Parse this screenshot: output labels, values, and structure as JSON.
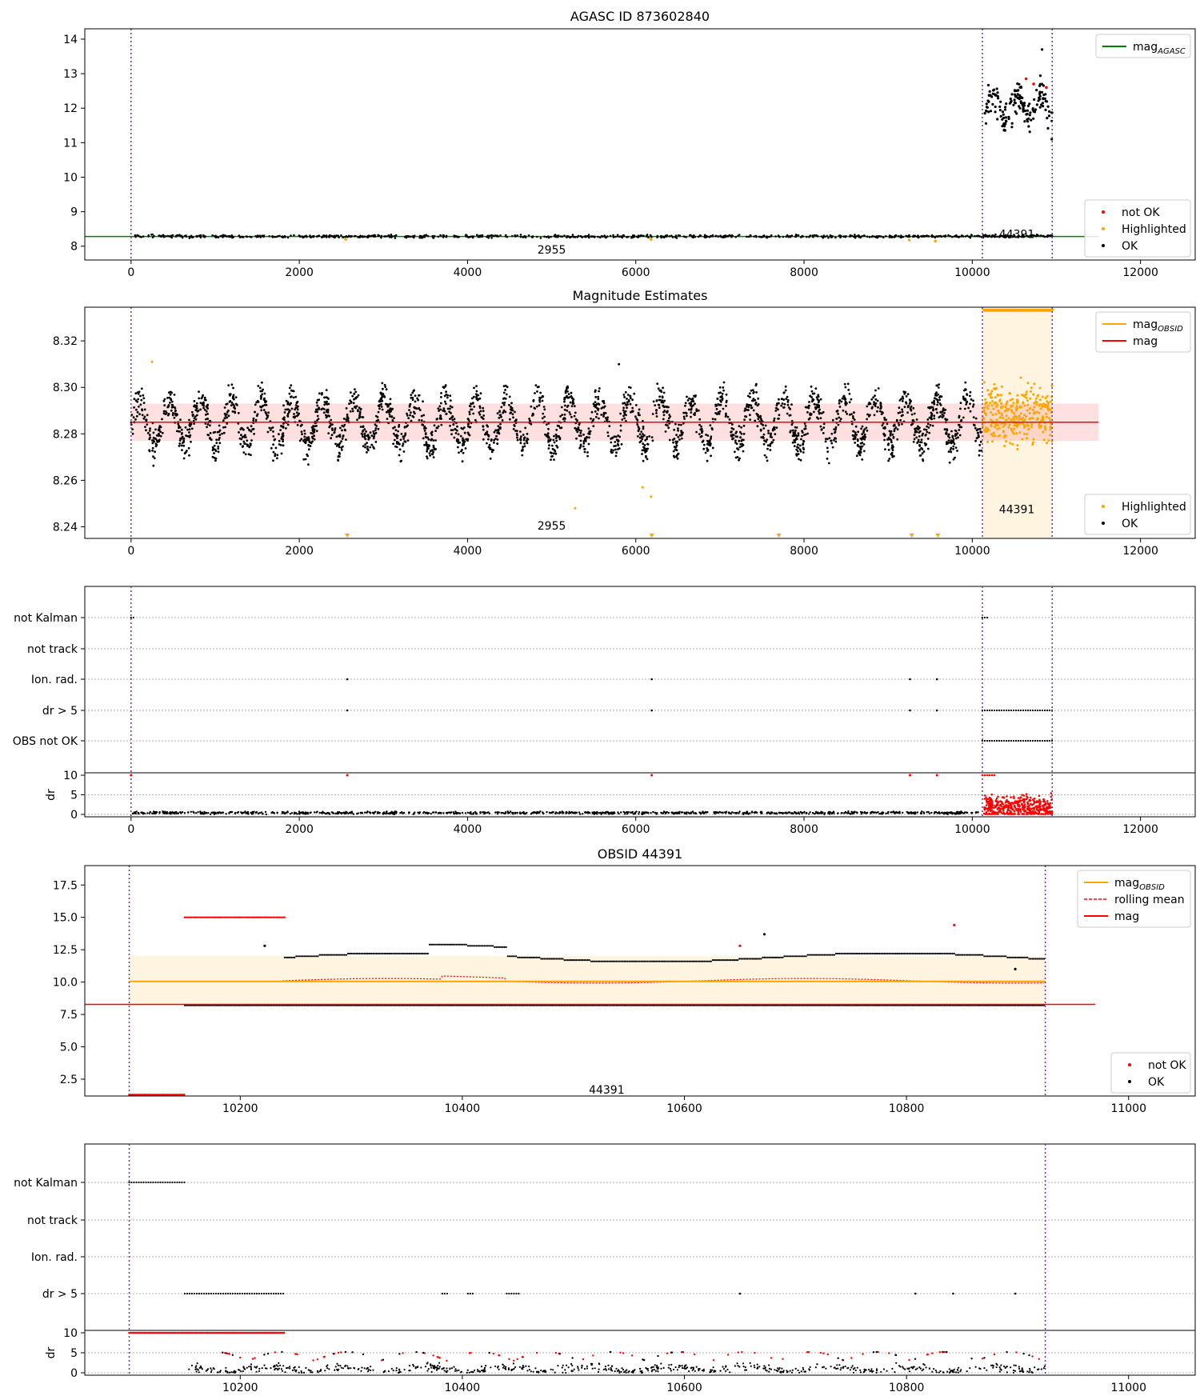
{
  "chart_data": [
    {
      "type": "scatter",
      "title": "AGASC ID 873602840",
      "xlim": [
        -550,
        12650
      ],
      "ylim": [
        7.6,
        14.3
      ],
      "xticks": [
        0,
        2000,
        4000,
        6000,
        8000,
        10000,
        12000
      ],
      "xtick_labels": [
        "0",
        "2000",
        "4000",
        "6000",
        "8000",
        "10000",
        "12000"
      ],
      "yticks": [
        8,
        9,
        10,
        11,
        12,
        13,
        14
      ],
      "ytick_labels": [
        "8",
        "9",
        "10",
        "11",
        "12",
        "13",
        "14"
      ],
      "grid": false,
      "vlines": [
        0,
        10120,
        10950
      ],
      "obsid_annotations": [
        {
          "label": "2955",
          "x": 5000,
          "y": 7.9
        },
        {
          "label": "44391",
          "x": 10530,
          "y": 8.35
        }
      ],
      "hlines": [
        {
          "name": "mag_AGASC",
          "y": 8.28,
          "color": "#008000",
          "xmin": -550,
          "xmax": 11500
        }
      ],
      "series": [
        {
          "name": "not OK",
          "color": "#ff0000",
          "points": [
            [
              10640,
              12.85
            ],
            [
              10730,
              12.7
            ],
            [
              10880,
              12.6
            ]
          ]
        },
        {
          "name": "Highlighted",
          "color": "#ffa500",
          "points": [
            [
              2550,
              8.2
            ],
            [
              6180,
              8.2
            ],
            [
              9250,
              8.18
            ],
            [
              9560,
              8.15
            ]
          ]
        },
        {
          "name": "OK",
          "color": "#000000",
          "baseline": 8.285,
          "cluster": {
            "x_range": [
              10150,
              10950
            ],
            "y_range": [
              11.1,
              13.7
            ]
          }
        }
      ],
      "legend_title": "mag_AGASC",
      "legend_upper": [
        {
          "label": "mag",
          "sub": "AGASC",
          "color": "#008000",
          "kind": "line"
        }
      ],
      "legend_lower": [
        {
          "label": "not OK",
          "color": "#ff0000",
          "kind": "dot"
        },
        {
          "label": "Highlighted",
          "color": "#ffa500",
          "kind": "dot"
        },
        {
          "label": "OK",
          "color": "#000000",
          "kind": "dot"
        }
      ],
      "legend_position_upper": "top-right",
      "legend_position_lower": "bottom-right"
    },
    {
      "type": "scatter",
      "title": "Magnitude Estimates",
      "xlim": [
        -550,
        12650
      ],
      "ylim": [
        8.235,
        8.3345
      ],
      "xticks": [
        0,
        2000,
        4000,
        6000,
        8000,
        10000,
        12000
      ],
      "xtick_labels": [
        "0",
        "2000",
        "4000",
        "6000",
        "8000",
        "10000",
        "12000"
      ],
      "yticks": [
        8.24,
        8.26,
        8.28,
        8.3,
        8.32
      ],
      "ytick_labels": [
        "8.24",
        "8.26",
        "8.28",
        "8.30",
        "8.32"
      ],
      "grid": false,
      "vlines": [
        0,
        10120,
        10950
      ],
      "mag": 8.285,
      "mag_band": [
        8.277,
        8.293
      ],
      "obsid_band": [
        10120,
        10950
      ],
      "obsid_annotations": [
        {
          "label": "2955",
          "x": 5000,
          "y": 8.2405
        },
        {
          "label": "44391",
          "x": 10530,
          "y": 8.2475
        }
      ],
      "series": [
        {
          "name": "OK",
          "color": "#000000",
          "x_range": [
            0,
            10120
          ],
          "center": 8.285,
          "amplitude": 0.01
        },
        {
          "name": "Highlighted",
          "color": "#ffa500",
          "x_range": [
            10120,
            10950
          ],
          "center": 8.288,
          "spread": 0.012
        }
      ],
      "outliers": [
        [
          250,
          8.311
        ],
        [
          5280,
          8.248
        ],
        [
          6080,
          8.257
        ],
        [
          6180,
          8.253
        ],
        [
          5800,
          8.31
        ]
      ],
      "legend_upper": [
        {
          "label": "mag",
          "sub": "OBSID",
          "color": "#ffa500",
          "kind": "line"
        },
        {
          "label": "mag",
          "sub": "",
          "color": "#ff0000",
          "kind": "line"
        }
      ],
      "legend_lower": [
        {
          "label": "Highlighted",
          "color": "#ffa500",
          "kind": "dot"
        },
        {
          "label": "OK",
          "color": "#000000",
          "kind": "dot"
        }
      ],
      "legend_position_upper": "top-right",
      "legend_position_lower": "bottom-right"
    },
    {
      "type": "scatter",
      "title": "",
      "xlim": [
        -550,
        12650
      ],
      "category_labels": [
        "not Kalman",
        "not track",
        "Ion. rad.",
        "dr > 5",
        "OBS not OK"
      ],
      "dr_ylim": [
        0,
        10
      ],
      "dr_yticks": [
        0,
        5,
        10
      ],
      "dr_ylabel": "dr",
      "xticks": [
        0,
        2000,
        4000,
        6000,
        8000,
        10000,
        12000
      ],
      "xtick_labels": [
        "0",
        "2000",
        "4000",
        "6000",
        "8000",
        "10000",
        "12000"
      ],
      "vlines": [
        0,
        10120,
        10950
      ],
      "flags": {
        "not Kalman": [
          [
            0,
            40
          ],
          [
            10120,
            10200
          ]
        ],
        "Ion. rad.": [
          2570,
          6190,
          9260,
          9580
        ],
        "dr > 5": [
          2570,
          6190,
          9260,
          9580,
          [
            10120,
            10950
          ]
        ],
        "OBS not OK": [
          [
            10120,
            10950
          ]
        ]
      }
    },
    {
      "type": "scatter",
      "title": "OBSID 44391",
      "xlim": [
        10060,
        11060
      ],
      "ylim": [
        1.2,
        19.0
      ],
      "xticks": [
        10200,
        10400,
        10600,
        10800,
        11000
      ],
      "xtick_labels": [
        "10200",
        "10400",
        "10600",
        "10800",
        "11000"
      ],
      "yticks": [
        2.5,
        5.0,
        7.5,
        10.0,
        12.5,
        15.0,
        17.5
      ],
      "ytick_labels": [
        "2.5",
        "5.0",
        "7.5",
        "10.0",
        "12.5",
        "15.0",
        "17.5"
      ],
      "vlines": [
        10100,
        10925
      ],
      "mag": 8.28,
      "mag_obsid": 10.05,
      "band": [
        8.2,
        12.0
      ],
      "obsid_annotations": [
        {
          "label": "44391",
          "x": 10530,
          "y": 1.7
        }
      ],
      "legend_upper": [
        {
          "label": "mag",
          "sub": "OBSID",
          "color": "#ffa500",
          "kind": "line"
        },
        {
          "label": "rolling mean",
          "sub": "",
          "color": "#ff0000",
          "kind": "dashed"
        },
        {
          "label": "mag",
          "sub": "",
          "color": "#ff0000",
          "kind": "line"
        }
      ],
      "legend_lower": [
        {
          "label": "not OK",
          "color": "#ff0000",
          "kind": "dot"
        },
        {
          "label": "OK",
          "color": "#000000",
          "kind": "dot"
        }
      ],
      "legend_position_upper": "top-right",
      "legend_position_lower": "bottom-right"
    },
    {
      "type": "scatter",
      "title": "",
      "xlim": [
        10060,
        11060
      ],
      "category_labels": [
        "not Kalman",
        "not track",
        "Ion. rad.",
        "dr > 5"
      ],
      "dr_ylim": [
        0,
        10
      ],
      "dr_yticks": [
        0,
        5,
        10
      ],
      "dr_ylabel": "dr",
      "xticks": [
        10200,
        10400,
        10600,
        10800,
        11000
      ],
      "xtick_labels": [
        "10200",
        "10400",
        "10600",
        "10800",
        "11000"
      ],
      "vlines": [
        10100,
        10925
      ],
      "flags": {
        "not Kalman": [
          [
            10100,
            10150
          ]
        ],
        "dr > 5": [
          [
            10150,
            10240
          ],
          [
            10382,
            10387
          ],
          [
            10405,
            10410
          ],
          [
            10440,
            10452
          ],
          10650,
          10808,
          10842,
          10898
        ]
      }
    }
  ]
}
